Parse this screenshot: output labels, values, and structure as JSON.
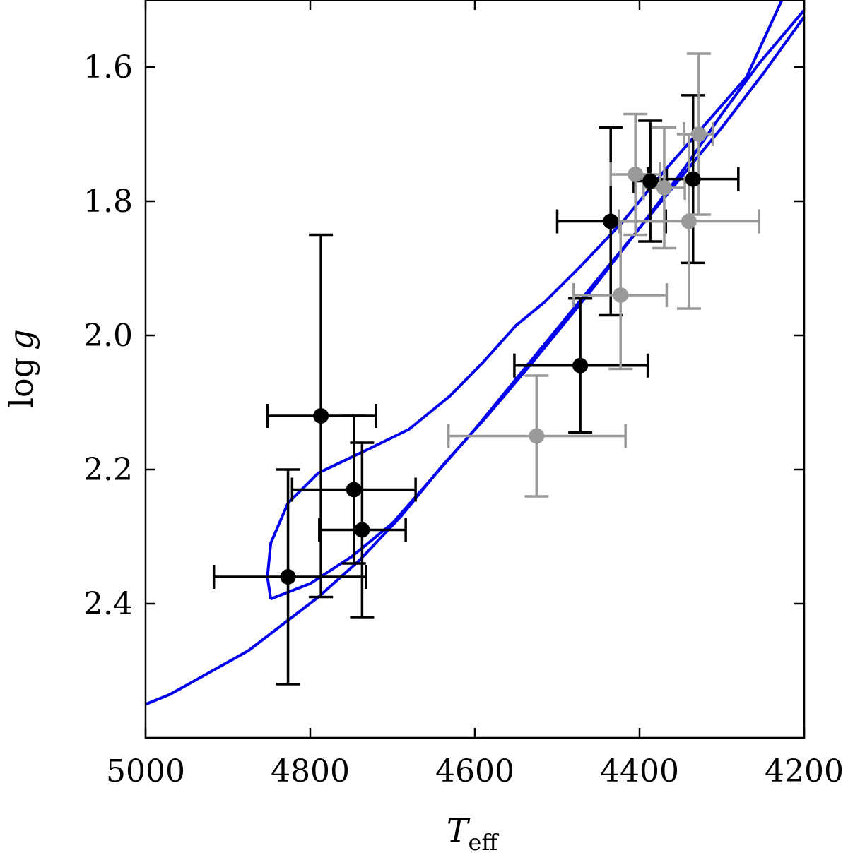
{
  "chart_data": {
    "type": "scatter",
    "title": "",
    "xlabel": "T",
    "xlabel_sub": "eff",
    "ylabel_prefix": "log",
    "ylabel_var": "g",
    "x_reversed": true,
    "y_reversed": true,
    "xlim": [
      5000,
      4200
    ],
    "ylim": [
      2.6,
      1.5
    ],
    "xticks": [
      5000,
      4800,
      4600,
      4400,
      4200
    ],
    "xtick_labels": [
      "5000",
      "4800",
      "4600",
      "4400",
      "4200"
    ],
    "yticks": [
      1.6,
      1.8,
      2.0,
      2.2,
      2.4
    ],
    "ytick_labels": [
      "1.6",
      "1.8",
      "2.0",
      "2.2",
      "2.4"
    ],
    "grid": false,
    "series": [
      {
        "marker": "circle",
        "color": "#000000",
        "points": [
          {
            "x": 4787,
            "y": 2.12,
            "xerr_lo": 65,
            "xerr_hi": 67,
            "yerr_lo": 0.27,
            "yerr_hi": 0.27
          },
          {
            "x": 4747,
            "y": 2.23,
            "xerr_lo": 75,
            "xerr_hi": 75,
            "yerr_lo": 0.11,
            "yerr_hi": 0.11
          },
          {
            "x": 4737,
            "y": 2.29,
            "xerr_lo": 52,
            "xerr_hi": 53,
            "yerr_lo": 0.13,
            "yerr_hi": 0.13
          },
          {
            "x": 4827,
            "y": 2.36,
            "xerr_lo": 90,
            "xerr_hi": 95,
            "yerr_lo": 0.16,
            "yerr_hi": 0.16
          },
          {
            "x": 4472,
            "y": 2.045,
            "xerr_lo": 80,
            "xerr_hi": 82,
            "yerr_lo": 0.1,
            "yerr_hi": 0.1
          },
          {
            "x": 4435,
            "y": 1.83,
            "xerr_lo": 65,
            "xerr_hi": 67,
            "yerr_lo": 0.14,
            "yerr_hi": 0.14
          },
          {
            "x": 4387,
            "y": 1.77,
            "xerr_lo": 20,
            "xerr_hi": 20,
            "yerr_lo": 0.09,
            "yerr_hi": 0.09
          },
          {
            "x": 4335,
            "y": 1.767,
            "xerr_lo": 55,
            "xerr_hi": 55,
            "yerr_lo": 0.125,
            "yerr_hi": 0.125
          }
        ]
      },
      {
        "marker": "circle",
        "color": "#999999",
        "points": [
          {
            "x": 4525,
            "y": 2.15,
            "xerr_lo": 107,
            "xerr_hi": 108,
            "yerr_lo": 0.09,
            "yerr_hi": 0.09
          },
          {
            "x": 4423,
            "y": 1.94,
            "xerr_lo": 57,
            "xerr_hi": 56,
            "yerr_lo": 0.11,
            "yerr_hi": 0.11
          },
          {
            "x": 4405,
            "y": 1.76,
            "xerr_lo": 30,
            "xerr_hi": 30,
            "yerr_lo": 0.09,
            "yerr_hi": 0.09
          },
          {
            "x": 4370,
            "y": 1.78,
            "xerr_lo": 25,
            "xerr_hi": 25,
            "yerr_lo": 0.09,
            "yerr_hi": 0.09
          },
          {
            "x": 4328,
            "y": 1.7,
            "xerr_lo": 18,
            "xerr_hi": 17,
            "yerr_lo": 0.12,
            "yerr_hi": 0.12
          },
          {
            "x": 4340,
            "y": 1.83,
            "xerr_lo": 85,
            "xerr_hi": 85,
            "yerr_lo": 0.13,
            "yerr_hi": 0.13
          }
        ]
      }
    ],
    "curves": [
      {
        "color": "#0000ee",
        "points": [
          [
            5000,
            2.55
          ],
          [
            4970,
            2.535
          ],
          [
            4875,
            2.47
          ],
          [
            4790,
            2.39
          ],
          [
            4740,
            2.335
          ],
          [
            4690,
            2.27
          ],
          [
            4640,
            2.195
          ],
          [
            4585,
            2.12
          ],
          [
            4530,
            2.04
          ],
          [
            4460,
            1.935
          ],
          [
            4400,
            1.84
          ],
          [
            4345,
            1.75
          ],
          [
            4300,
            1.67
          ],
          [
            4255,
            1.595
          ],
          [
            4200,
            1.515
          ]
        ]
      },
      {
        "color": "#0000ee",
        "points": [
          [
            4848,
            2.393
          ],
          [
            4800,
            2.37
          ],
          [
            4750,
            2.33
          ],
          [
            4700,
            2.28
          ],
          [
            4650,
            2.21
          ],
          [
            4600,
            2.14
          ],
          [
            4550,
            2.065
          ],
          [
            4500,
            1.99
          ],
          [
            4450,
            1.915
          ],
          [
            4400,
            1.84
          ],
          [
            4350,
            1.765
          ],
          [
            4300,
            1.69
          ],
          [
            4250,
            1.61
          ],
          [
            4200,
            1.525
          ]
        ]
      },
      {
        "color": "#0000ee",
        "points": [
          [
            4848,
            2.393
          ],
          [
            4852,
            2.36
          ],
          [
            4848,
            2.31
          ],
          [
            4827,
            2.25
          ],
          [
            4790,
            2.205
          ],
          [
            4730,
            2.17
          ],
          [
            4680,
            2.14
          ],
          [
            4630,
            2.09
          ],
          [
            4590,
            2.04
          ],
          [
            4550,
            1.985
          ],
          [
            4515,
            1.95
          ],
          [
            4470,
            1.895
          ],
          [
            4420,
            1.83
          ],
          [
            4370,
            1.755
          ],
          [
            4320,
            1.685
          ],
          [
            4270,
            1.615
          ],
          [
            4227,
            1.5
          ]
        ]
      }
    ]
  }
}
